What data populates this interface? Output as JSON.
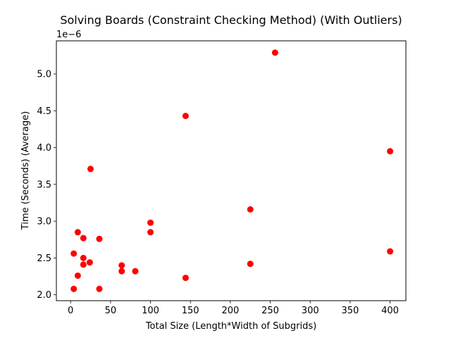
{
  "chart_data": {
    "type": "scatter",
    "title": "Solving Boards (Constraint Checking Method) (With Outliers)",
    "xlabel": "Total Size (Length*Width of Subgrids)",
    "ylabel": "Time (Seconds) (Average)",
    "y_offset_label": "1e−6",
    "xlim": [
      -17.8,
      419.8
    ],
    "ylim": [
      1.92,
      5.45
    ],
    "x_ticks": [
      0,
      50,
      100,
      150,
      200,
      250,
      300,
      350,
      400
    ],
    "x_tick_labels": [
      "0",
      "50",
      "100",
      "150",
      "200",
      "250",
      "300",
      "350",
      "400"
    ],
    "y_ticks": [
      2.0,
      2.5,
      3.0,
      3.5,
      4.0,
      4.5,
      5.0
    ],
    "y_tick_labels": [
      "2.0",
      "2.5",
      "3.0",
      "3.5",
      "4.0",
      "4.5",
      "5.0"
    ],
    "grid": false,
    "marker_color": "#ff0000",
    "points": [
      {
        "x": 4,
        "y": 2.08
      },
      {
        "x": 4,
        "y": 2.56
      },
      {
        "x": 9,
        "y": 2.26
      },
      {
        "x": 9,
        "y": 2.85
      },
      {
        "x": 16,
        "y": 2.41
      },
      {
        "x": 16,
        "y": 2.5
      },
      {
        "x": 16,
        "y": 2.77
      },
      {
        "x": 24,
        "y": 2.44
      },
      {
        "x": 25,
        "y": 3.71
      },
      {
        "x": 36,
        "y": 2.08
      },
      {
        "x": 36,
        "y": 2.76
      },
      {
        "x": 64,
        "y": 2.32
      },
      {
        "x": 64,
        "y": 2.4
      },
      {
        "x": 81,
        "y": 2.32
      },
      {
        "x": 100,
        "y": 2.85
      },
      {
        "x": 100,
        "y": 2.98
      },
      {
        "x": 144,
        "y": 2.23
      },
      {
        "x": 144,
        "y": 4.43
      },
      {
        "x": 225,
        "y": 2.42
      },
      {
        "x": 225,
        "y": 3.16
      },
      {
        "x": 256,
        "y": 5.29
      },
      {
        "x": 400,
        "y": 2.59
      },
      {
        "x": 400,
        "y": 3.95
      }
    ]
  }
}
